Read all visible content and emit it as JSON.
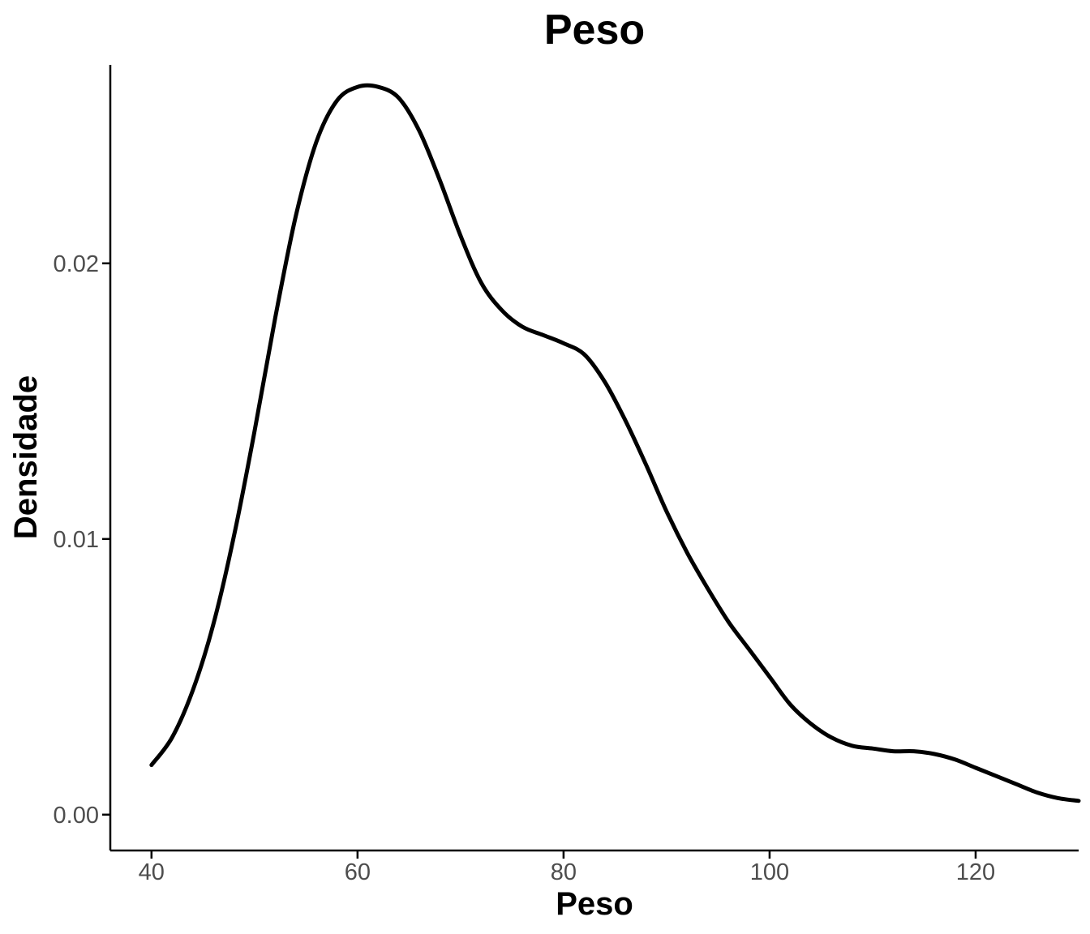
{
  "chart_data": {
    "type": "line",
    "title": "Peso",
    "xlabel": "Peso",
    "ylabel": "Densidade",
    "xlim": [
      36,
      130
    ],
    "ylim": [
      -0.0013,
      0.0272
    ],
    "x_ticks": [
      40,
      60,
      80,
      100,
      120
    ],
    "x_tick_labels": [
      "40",
      "60",
      "80",
      "100",
      "120"
    ],
    "y_ticks": [
      0.0,
      0.01,
      0.02
    ],
    "y_tick_labels": [
      "0.00",
      "0.01",
      "0.02"
    ],
    "grid": false,
    "legend": "none",
    "series": [
      {
        "color": "#000000",
        "x": [
          40,
          42,
          44,
          46,
          48,
          50,
          52,
          54,
          56,
          58,
          60,
          62,
          64,
          66,
          68,
          70,
          72,
          74,
          76,
          78,
          80,
          82,
          84,
          86,
          88,
          90,
          92,
          94,
          96,
          98,
          100,
          102,
          104,
          106,
          108,
          110,
          112,
          114,
          116,
          118,
          120,
          122,
          124,
          126,
          128,
          130
        ],
        "y": [
          0.0018,
          0.0028,
          0.0045,
          0.0069,
          0.0101,
          0.0139,
          0.018,
          0.0217,
          0.0244,
          0.0259,
          0.0264,
          0.0264,
          0.026,
          0.0248,
          0.023,
          0.021,
          0.0193,
          0.0183,
          0.0177,
          0.0174,
          0.0171,
          0.0167,
          0.0157,
          0.0143,
          0.0127,
          0.011,
          0.0095,
          0.0082,
          0.007,
          0.006,
          0.005,
          0.004,
          0.0033,
          0.0028,
          0.0025,
          0.0024,
          0.0023,
          0.0023,
          0.0022,
          0.002,
          0.0017,
          0.0014,
          0.0011,
          0.0008,
          0.0006,
          0.0005
        ]
      }
    ]
  }
}
